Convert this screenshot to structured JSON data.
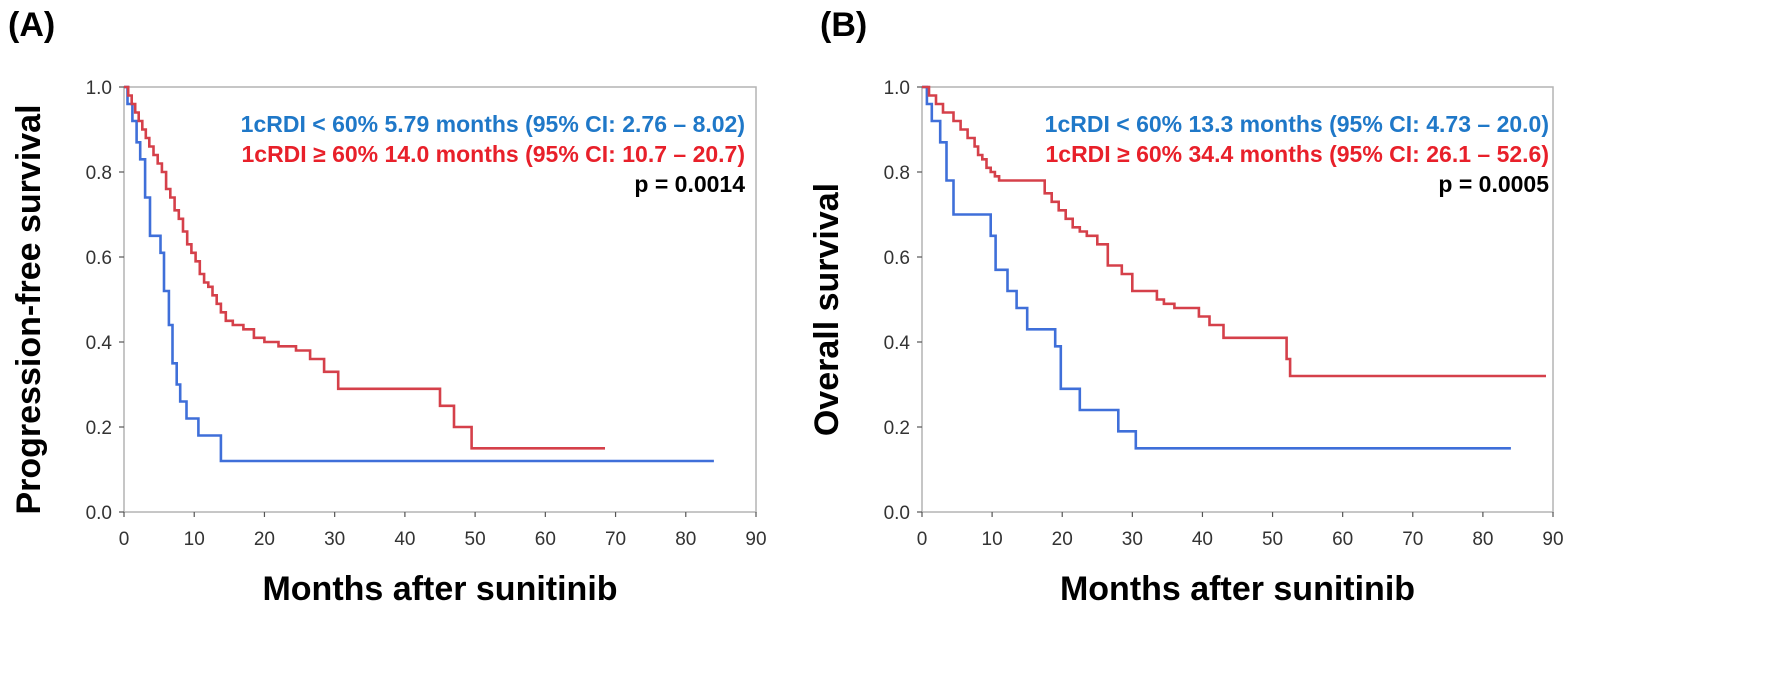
{
  "colors": {
    "group_low": "#3F6FD9",
    "group_high": "#D5404A",
    "annot_low": "#1F78C8",
    "annot_high": "#E8202A",
    "annot_p": "#000000"
  },
  "chart_data": [
    {
      "type": "line",
      "panel_label": "(A)",
      "xlabel": "Months after sunitinib",
      "ylabel": "Progression-free survival",
      "xlim": [
        0,
        90
      ],
      "ylim": [
        0,
        1
      ],
      "xticks": [
        "0",
        "10",
        "20",
        "30",
        "40",
        "50",
        "60",
        "70",
        "80",
        "90"
      ],
      "yticks": [
        "0.0",
        "0.2",
        "0.4",
        "0.6",
        "0.8",
        "1.0"
      ],
      "grid": false,
      "annotations": [
        {
          "text": "1cRDI < 60%  5.79 months (95% CI: 2.76 – 8.02)",
          "color_key": "annot_low"
        },
        {
          "text": "1cRDI ≥ 60%  14.0 months (95% CI: 10.7 – 20.7)",
          "color_key": "annot_high"
        },
        {
          "text": "p = 0.0014",
          "color_key": "annot_p"
        }
      ],
      "series": [
        {
          "color_key": "group_low",
          "x": [
            0,
            0.5,
            1.2,
            1.8,
            2.3,
            3.0,
            3.7,
            5.2,
            5.7,
            6.4,
            6.9,
            7.5,
            8.0,
            8.9,
            10.6,
            13.8,
            84
          ],
          "y": [
            1.0,
            0.96,
            0.92,
            0.87,
            0.83,
            0.74,
            0.65,
            0.61,
            0.52,
            0.44,
            0.35,
            0.3,
            0.26,
            0.22,
            0.18,
            0.12,
            0.12
          ]
        },
        {
          "color_key": "group_high",
          "x": [
            0,
            0.6,
            1.1,
            1.6,
            2.1,
            2.6,
            3.1,
            3.6,
            4.2,
            4.8,
            5.4,
            6.0,
            6.6,
            7.2,
            7.8,
            8.4,
            9.0,
            9.6,
            10.2,
            10.8,
            11.4,
            12.0,
            12.6,
            13.2,
            13.8,
            14.5,
            15.5,
            17.0,
            18.5,
            20.0,
            22.0,
            24.5,
            26.5,
            28.5,
            30.5,
            45.0,
            47.0,
            49.5,
            68.5
          ],
          "y": [
            1.0,
            0.98,
            0.96,
            0.94,
            0.92,
            0.9,
            0.88,
            0.86,
            0.84,
            0.82,
            0.8,
            0.76,
            0.74,
            0.71,
            0.69,
            0.66,
            0.63,
            0.61,
            0.59,
            0.56,
            0.54,
            0.53,
            0.51,
            0.49,
            0.47,
            0.45,
            0.44,
            0.43,
            0.41,
            0.4,
            0.39,
            0.38,
            0.36,
            0.33,
            0.29,
            0.25,
            0.2,
            0.15,
            0.15
          ]
        }
      ]
    },
    {
      "type": "line",
      "panel_label": "(B)",
      "xlabel": "Months after sunitinib",
      "ylabel": "Overall survival",
      "xlim": [
        0,
        90
      ],
      "ylim": [
        0,
        1
      ],
      "xticks": [
        "0",
        "10",
        "20",
        "30",
        "40",
        "50",
        "60",
        "70",
        "80",
        "90"
      ],
      "yticks": [
        "0.0",
        "0.2",
        "0.4",
        "0.6",
        "0.8",
        "1.0"
      ],
      "grid": false,
      "annotations": [
        {
          "text": "1cRDI < 60%  13.3 months (95% CI: 4.73 – 20.0)",
          "color_key": "annot_low"
        },
        {
          "text": "1cRDI ≥ 60% 34.4 months (95% CI: 26.1 – 52.6)",
          "color_key": "annot_high"
        },
        {
          "text": "p = 0.0005",
          "color_key": "annot_p"
        }
      ],
      "series": [
        {
          "color_key": "group_low",
          "x": [
            0,
            0.7,
            1.4,
            2.6,
            3.5,
            4.5,
            9.8,
            10.5,
            12.2,
            13.5,
            15.0,
            19.0,
            19.8,
            22.5,
            28.0,
            30.5,
            84
          ],
          "y": [
            1.0,
            0.96,
            0.92,
            0.87,
            0.78,
            0.7,
            0.65,
            0.57,
            0.52,
            0.48,
            0.43,
            0.39,
            0.29,
            0.24,
            0.19,
            0.15,
            0.15
          ]
        },
        {
          "color_key": "group_high",
          "x": [
            0,
            1.0,
            2.0,
            3.0,
            4.5,
            5.5,
            6.5,
            7.5,
            8.0,
            8.6,
            9.2,
            9.8,
            10.4,
            11.0,
            12.0,
            17.5,
            18.5,
            19.5,
            20.5,
            21.5,
            22.5,
            23.5,
            25.0,
            26.5,
            28.5,
            30.0,
            33.5,
            34.5,
            36.0,
            39.5,
            41.0,
            43.0,
            52.0,
            52.5,
            89
          ],
          "y": [
            1.0,
            0.98,
            0.96,
            0.94,
            0.92,
            0.9,
            0.88,
            0.86,
            0.84,
            0.83,
            0.81,
            0.8,
            0.79,
            0.78,
            0.78,
            0.75,
            0.73,
            0.71,
            0.69,
            0.67,
            0.66,
            0.65,
            0.63,
            0.58,
            0.56,
            0.52,
            0.5,
            0.49,
            0.48,
            0.46,
            0.44,
            0.41,
            0.36,
            0.32,
            0.32
          ]
        }
      ]
    }
  ]
}
